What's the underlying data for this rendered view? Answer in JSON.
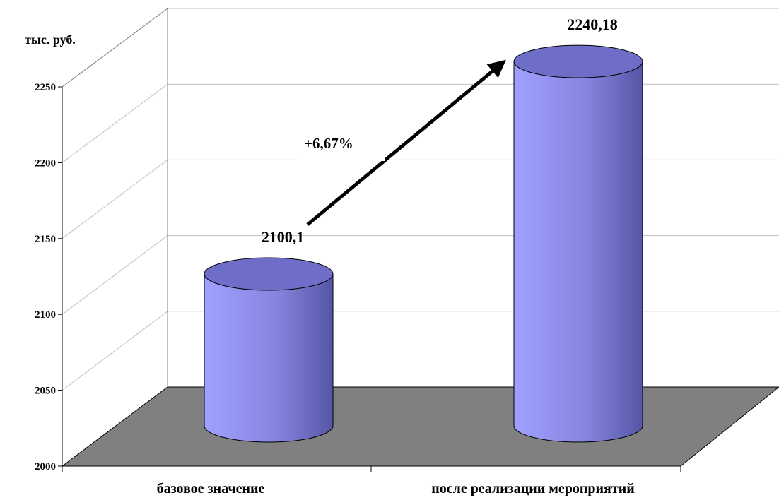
{
  "chart_data": {
    "type": "bar",
    "subtype": "3d-cylinder",
    "categories": [
      "базовое значение",
      "после реализации мероприятий"
    ],
    "values": [
      2100.1,
      2240.18
    ],
    "value_labels": [
      "2100,1",
      "2240,18"
    ],
    "ylabel": "тыс. руб.",
    "ylim": [
      2000,
      2250
    ],
    "yticks": [
      2000,
      2050,
      2100,
      2150,
      2200,
      2250
    ],
    "grid": true,
    "legend": "none",
    "annotation": {
      "text": "+6,67%",
      "arrow": "from first bar to second bar"
    },
    "colors": {
      "bar": "#8c8ce6",
      "bar_top": "#6e6ec8",
      "floor": "#808080",
      "grid": "#c0c0c0"
    }
  }
}
